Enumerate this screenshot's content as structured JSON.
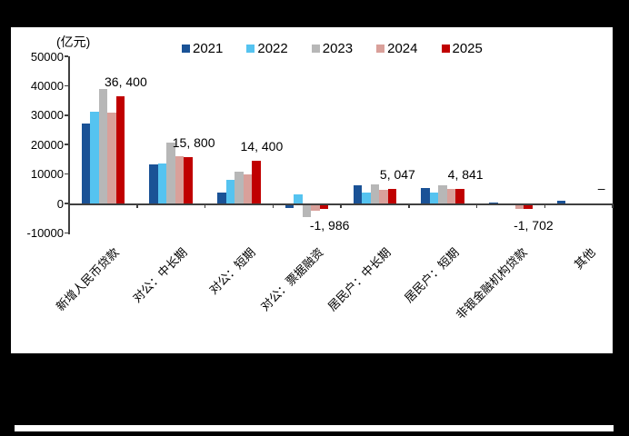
{
  "frame": {
    "background": "#000000",
    "panel_background": "#ffffff"
  },
  "chart_data": {
    "type": "bar",
    "title": "",
    "unit_label": "(亿元)",
    "xlabel": "",
    "ylabel": "(亿元)",
    "categories": [
      "新增人民币贷款",
      "对公：中长期",
      "对公：短期",
      "对公：票据融资",
      "居民户：中长期",
      "居民户：短期",
      "非银金融机构贷款",
      "其他"
    ],
    "series": [
      {
        "name": "2021",
        "color": "#1a5296",
        "values": [
          27300,
          13300,
          3748,
          -1525,
          6239,
          5242,
          270,
          800
        ]
      },
      {
        "name": "2022",
        "color": "#55c3f0",
        "values": [
          31300,
          13448,
          8089,
          3187,
          3735,
          3848,
          -454,
          -400
        ]
      },
      {
        "name": "2023",
        "color": "#b7b7b7",
        "values": [
          38900,
          20700,
          10815,
          -4687,
          6348,
          6094,
          -379,
          0
        ]
      },
      {
        "name": "2024",
        "color": "#d9a09a",
        "values": [
          30900,
          16000,
          9800,
          -2500,
          4516,
          4908,
          -1958,
          0
        ]
      },
      {
        "name": "2025",
        "color": "#c00000",
        "values": [
          36400,
          15800,
          14400,
          -1986,
          5047,
          4841,
          -1702,
          null
        ]
      }
    ],
    "annotations": [
      {
        "category_index": 0,
        "text": "36, 400",
        "position": "above"
      },
      {
        "category_index": 1,
        "text": "15, 800",
        "position": "above"
      },
      {
        "category_index": 2,
        "text": "14, 400",
        "position": "above"
      },
      {
        "category_index": 3,
        "text": "-1, 986",
        "position": "below"
      },
      {
        "category_index": 4,
        "text": "5, 047",
        "position": "above"
      },
      {
        "category_index": 5,
        "text": "4, 841",
        "position": "above"
      },
      {
        "category_index": 6,
        "text": "-1, 702",
        "position": "below"
      },
      {
        "category_index": 7,
        "text": "–",
        "position": "above"
      }
    ],
    "y_axis": {
      "min": -10000,
      "max": 50000,
      "tick_step": 10000,
      "tick_labels": [
        "50000",
        "40000",
        "30000",
        "20000",
        "10000",
        "0",
        "-10000"
      ]
    },
    "legend": {
      "position": "top",
      "entries": [
        "2021",
        "2022",
        "2023",
        "2024",
        "2025"
      ]
    },
    "grid": false,
    "axis_color": "#404040"
  }
}
